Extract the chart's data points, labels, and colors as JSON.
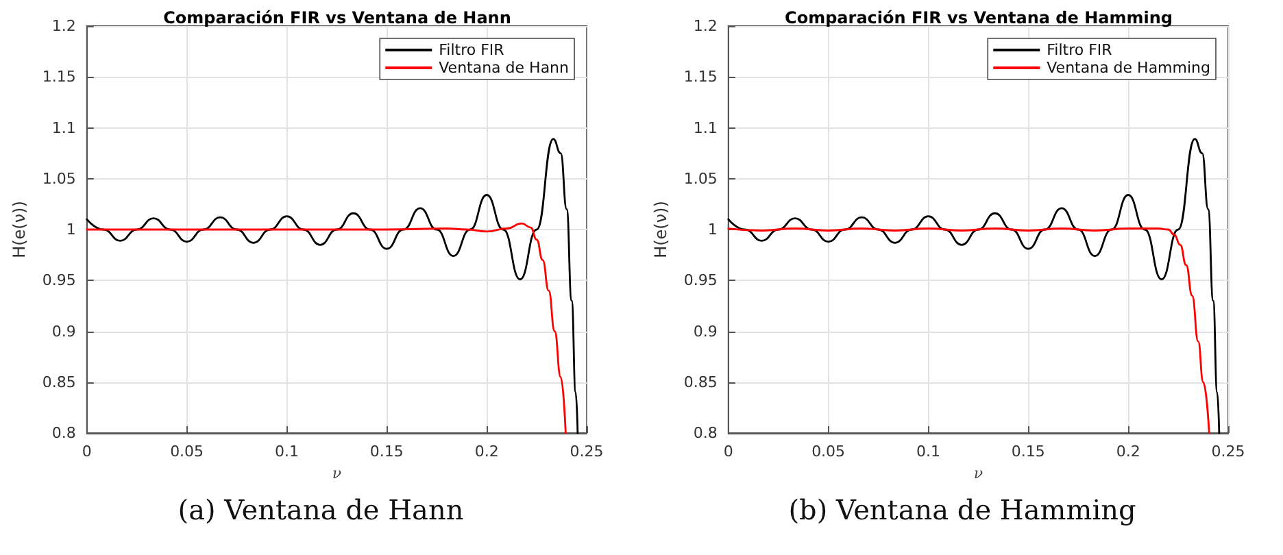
{
  "chart_data": [
    {
      "type": "line",
      "title": "Comparación FIR vs Ventana de Hann",
      "xlabel": "ν",
      "ylabel": "H(e(ν))",
      "annotations": [
        "(a) Ventana de Hann"
      ],
      "xlim": [
        0,
        0.25
      ],
      "xticks": [
        0,
        0.05,
        0.1,
        0.15,
        0.2,
        0.25
      ],
      "ylim": [
        0.8,
        1.2
      ],
      "yticks": [
        0.8,
        0.85,
        0.9,
        0.95,
        1,
        1.05,
        1.1,
        1.15,
        1.2
      ],
      "grid": true,
      "legend": "top right",
      "marker": "none",
      "line_style": "solid",
      "series": [
        {
          "name": "Filtro FIR",
          "color": "#000000",
          "x": [
            0,
            0.0083,
            0.0167,
            0.025,
            0.0333,
            0.0417,
            0.05,
            0.0583,
            0.0667,
            0.075,
            0.0833,
            0.0917,
            0.1,
            0.1083,
            0.1167,
            0.125,
            0.1333,
            0.1417,
            0.15,
            0.1583,
            0.1667,
            0.175,
            0.1833,
            0.1917,
            0.2,
            0.2083,
            0.2167,
            0.225,
            0.2333,
            0.237,
            0.24,
            0.2425,
            0.2445,
            0.2455
          ],
          "values": [
            1.01,
            1.0,
            0.989,
            1.0,
            1.011,
            1.0,
            0.988,
            1.0,
            1.012,
            1.0,
            0.987,
            1.0,
            1.013,
            1.0,
            0.985,
            1.0,
            1.016,
            1.0,
            0.981,
            1.0,
            1.021,
            1.0,
            0.974,
            1.0,
            1.034,
            1.0,
            0.951,
            1.0,
            1.089,
            1.075,
            1.02,
            0.93,
            0.84,
            0.8
          ]
        },
        {
          "name": "Ventana de Hann",
          "color": "#ff0000",
          "x": [
            0,
            0.05,
            0.1,
            0.15,
            0.18,
            0.19,
            0.2,
            0.21,
            0.2175,
            0.222,
            0.225,
            0.228,
            0.231,
            0.234,
            0.237,
            0.2395
          ],
          "values": [
            1,
            1,
            1,
            1,
            1.001,
            1.0,
            0.998,
            1.001,
            1.006,
            1.002,
            0.99,
            0.97,
            0.94,
            0.9,
            0.855,
            0.8
          ]
        }
      ]
    },
    {
      "type": "line",
      "title": "Comparación FIR vs Ventana de Hamming",
      "xlabel": "ν",
      "ylabel": "H(e(ν))",
      "annotations": [
        "(b) Ventana de Hamming"
      ],
      "xlim": [
        0,
        0.25
      ],
      "xticks": [
        0,
        0.05,
        0.1,
        0.15,
        0.2,
        0.25
      ],
      "ylim": [
        0.8,
        1.2
      ],
      "yticks": [
        0.8,
        0.85,
        0.9,
        0.95,
        1,
        1.05,
        1.1,
        1.15,
        1.2
      ],
      "grid": true,
      "legend": "top right",
      "marker": "none",
      "line_style": "solid",
      "series": [
        {
          "name": "Filtro FIR",
          "color": "#000000",
          "x": [
            0,
            0.0083,
            0.0167,
            0.025,
            0.0333,
            0.0417,
            0.05,
            0.0583,
            0.0667,
            0.075,
            0.0833,
            0.0917,
            0.1,
            0.1083,
            0.1167,
            0.125,
            0.1333,
            0.1417,
            0.15,
            0.1583,
            0.1667,
            0.175,
            0.1833,
            0.1917,
            0.2,
            0.2083,
            0.2167,
            0.225,
            0.2333,
            0.237,
            0.24,
            0.2425,
            0.2445,
            0.2455
          ],
          "values": [
            1.01,
            1.0,
            0.989,
            1.0,
            1.011,
            1.0,
            0.988,
            1.0,
            1.012,
            1.0,
            0.987,
            1.0,
            1.013,
            1.0,
            0.985,
            1.0,
            1.016,
            1.0,
            0.981,
            1.0,
            1.021,
            1.0,
            0.974,
            1.0,
            1.034,
            1.0,
            0.951,
            1.0,
            1.089,
            1.075,
            1.02,
            0.93,
            0.84,
            0.8
          ]
        },
        {
          "name": "Ventana de Hamming",
          "color": "#ff0000",
          "x": [
            0,
            0.0167,
            0.0333,
            0.05,
            0.0667,
            0.0833,
            0.1,
            0.1167,
            0.1333,
            0.15,
            0.1667,
            0.1833,
            0.2,
            0.215,
            0.22,
            0.223,
            0.226,
            0.229,
            0.232,
            0.235,
            0.2375,
            0.2405
          ],
          "values": [
            1.001,
            0.999,
            1.001,
            0.999,
            1.001,
            0.999,
            1.001,
            0.999,
            1.001,
            0.999,
            1.001,
            0.999,
            1.001,
            1.001,
            1.0,
            0.995,
            0.985,
            0.965,
            0.935,
            0.89,
            0.85,
            0.8
          ]
        }
      ]
    }
  ]
}
